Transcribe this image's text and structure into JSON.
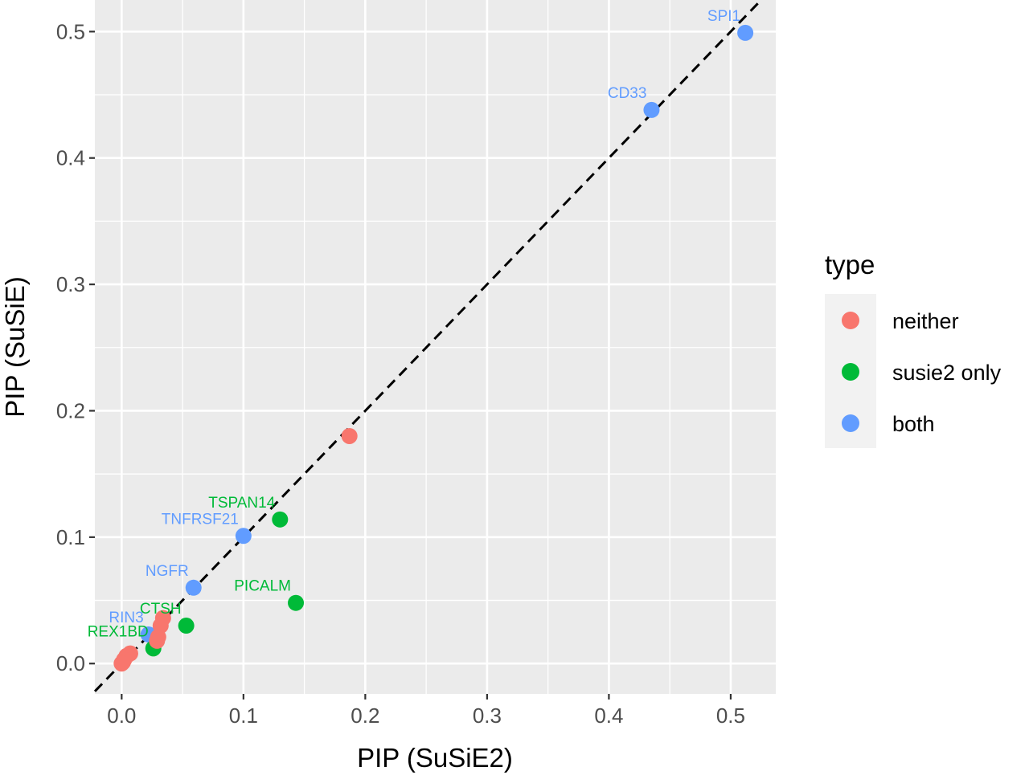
{
  "chart_data": {
    "type": "scatter",
    "xlabel": "PIP (SuSiE2)",
    "ylabel": "PIP (SuSiE)",
    "xlim": [
      -0.022,
      0.537
    ],
    "ylim": [
      -0.024,
      0.525
    ],
    "x_ticks": [
      0.0,
      0.1,
      0.2,
      0.3,
      0.4,
      0.5
    ],
    "y_ticks": [
      0.0,
      0.1,
      0.2,
      0.3,
      0.4,
      0.5
    ],
    "x_tick_labels": [
      "0.0",
      "0.1",
      "0.2",
      "0.3",
      "0.4",
      "0.5"
    ],
    "y_tick_labels": [
      "0.0",
      "0.1",
      "0.2",
      "0.3",
      "0.4",
      "0.5"
    ],
    "grid": true,
    "reference_line": {
      "slope": 1,
      "intercept": 0,
      "style": "dashed",
      "color": "#000000"
    },
    "legend": {
      "title": "type",
      "position": "right",
      "entries": [
        {
          "key": "neither",
          "label": "neither",
          "color": "#F8766D"
        },
        {
          "key": "susie2_only",
          "label": "susie2 only",
          "color": "#00BA38"
        },
        {
          "key": "both",
          "label": "both",
          "color": "#619CFF"
        }
      ]
    },
    "points": [
      {
        "x": 0.512,
        "y": 0.499,
        "type": "both",
        "label": "SPI1"
      },
      {
        "x": 0.435,
        "y": 0.438,
        "type": "both",
        "label": "CD33"
      },
      {
        "x": 0.1,
        "y": 0.101,
        "type": "both",
        "label": "TNFRSF21"
      },
      {
        "x": 0.059,
        "y": 0.06,
        "type": "both",
        "label": "NGFR"
      },
      {
        "x": 0.022,
        "y": 0.023,
        "type": "both",
        "label": "RIN3"
      },
      {
        "x": 0.13,
        "y": 0.114,
        "type": "susie2_only",
        "label": "TSPAN14"
      },
      {
        "x": 0.143,
        "y": 0.048,
        "type": "susie2_only",
        "label": "PICALM"
      },
      {
        "x": 0.053,
        "y": 0.03,
        "type": "susie2_only",
        "label": "CTSH"
      },
      {
        "x": 0.026,
        "y": 0.012,
        "type": "susie2_only",
        "label": "REX1BD"
      },
      {
        "x": 0.187,
        "y": 0.18,
        "type": "neither",
        "label": ""
      },
      {
        "x": 0.034,
        "y": 0.036,
        "type": "neither",
        "label": ""
      },
      {
        "x": 0.032,
        "y": 0.03,
        "type": "neither",
        "label": ""
      },
      {
        "x": 0.03,
        "y": 0.021,
        "type": "neither",
        "label": ""
      },
      {
        "x": 0.029,
        "y": 0.018,
        "type": "neither",
        "label": ""
      },
      {
        "x": 0.007,
        "y": 0.008,
        "type": "neither",
        "label": ""
      },
      {
        "x": 0.004,
        "y": 0.006,
        "type": "neither",
        "label": ""
      },
      {
        "x": 0.002,
        "y": 0.003,
        "type": "neither",
        "label": ""
      },
      {
        "x": 0.001,
        "y": 0.001,
        "type": "neither",
        "label": ""
      },
      {
        "x": 0.0,
        "y": 0.0,
        "type": "neither",
        "label": ""
      }
    ]
  }
}
